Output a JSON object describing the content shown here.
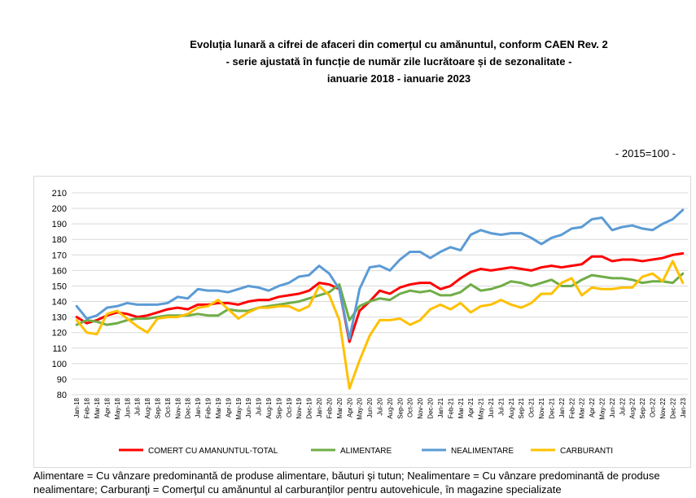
{
  "title": {
    "line1": "Evoluția lunară a cifrei de afaceri din comerțul cu amănuntul, conform CAEN Rev. 2",
    "line2": "- serie ajustată în funcție de număr zile lucrătoare și de sezonalitate -",
    "line3": "ianuarie 2018 - ianuarie 2023"
  },
  "base_note": "- 2015=100 -",
  "footnote": "Alimentare = Cu vânzare predominantă de produse alimentare, băuturi şi tutun; Nealimentare = Cu vânzare predominantă de produse nealimentare; Carburanţi = Comerţul cu amănuntul al carburanţilor pentru autovehicule, în magazine specializate",
  "chart_data": {
    "type": "line",
    "ylim": [
      80,
      210
    ],
    "yticks": [
      80,
      90,
      100,
      110,
      120,
      130,
      140,
      150,
      160,
      170,
      180,
      190,
      200,
      210
    ],
    "grid": "horizontal",
    "legend_position": "bottom",
    "x": [
      "Jan-18",
      "Feb-18",
      "Mar-18",
      "Apr-18",
      "May-18",
      "Jun-18",
      "Jul-18",
      "Aug-18",
      "Sep-18",
      "Oct-18",
      "Nov-18",
      "Dec-18",
      "Jan-19",
      "Feb-19",
      "Mar-19",
      "Apr-19",
      "May-19",
      "Jun-19",
      "Jul-19",
      "Aug-19",
      "Sep-19",
      "Oct-19",
      "Nov-19",
      "Dec-19",
      "Jan-20",
      "Feb-20",
      "Mar-20",
      "Apr-20",
      "May-20",
      "Jun-20",
      "Jul-20",
      "Aug-20",
      "Sep-20",
      "Oct-20",
      "Nov-20",
      "Dec-20",
      "Jan-21",
      "Feb-21",
      "Mar-21",
      "Apr-21",
      "May-21",
      "Jun-21",
      "Jul-21",
      "Aug-21",
      "Sep-21",
      "Oct-21",
      "Nov-21",
      "Dec-21",
      "Jan-22",
      "Feb-22",
      "Mar-22",
      "Apr-22",
      "May-22",
      "Jun-22",
      "Jul-22",
      "Aug-22",
      "Sep-22",
      "Oct-22",
      "Nov-22",
      "Dec-22",
      "Jan-23"
    ],
    "series": [
      {
        "name": "COMERT CU AMANUNTUL-TOTAL",
        "color": "#ff0000",
        "values": [
          130,
          126,
          128,
          131,
          133,
          132,
          130,
          131,
          133,
          135,
          136,
          135,
          138,
          138,
          139,
          139,
          138,
          140,
          141,
          141,
          143,
          144,
          145,
          147,
          152,
          151,
          148,
          114,
          134,
          140,
          147,
          145,
          149,
          151,
          152,
          152,
          148,
          150,
          155,
          159,
          161,
          160,
          161,
          162,
          161,
          160,
          162,
          163,
          162,
          163,
          164,
          169,
          169,
          166,
          167,
          167,
          166,
          167,
          168,
          170,
          171
        ]
      },
      {
        "name": "ALIMENTARE",
        "color": "#70ad47",
        "values": [
          125,
          128,
          127,
          125,
          126,
          128,
          129,
          129,
          130,
          131,
          131,
          131,
          132,
          131,
          131,
          135,
          134,
          134,
          136,
          137,
          138,
          139,
          140,
          142,
          144,
          146,
          151,
          128,
          137,
          140,
          142,
          141,
          145,
          147,
          146,
          147,
          144,
          144,
          146,
          151,
          147,
          148,
          150,
          153,
          152,
          150,
          152,
          154,
          150,
          150,
          154,
          157,
          156,
          155,
          155,
          154,
          152,
          153,
          153,
          152,
          158
        ]
      },
      {
        "name": "NEALIMENTARE",
        "color": "#5b9bd5",
        "values": [
          137,
          129,
          131,
          136,
          137,
          139,
          138,
          138,
          138,
          139,
          143,
          142,
          148,
          147,
          147,
          146,
          148,
          150,
          149,
          147,
          150,
          152,
          156,
          157,
          163,
          158,
          148,
          116,
          148,
          162,
          163,
          160,
          167,
          172,
          172,
          168,
          172,
          175,
          173,
          183,
          186,
          184,
          183,
          184,
          184,
          181,
          177,
          181,
          183,
          187,
          188,
          193,
          194,
          186,
          188,
          189,
          187,
          186,
          190,
          193,
          199
        ]
      },
      {
        "name": "CARBURANTI",
        "color": "#ffc000",
        "values": [
          128,
          120,
          119,
          132,
          134,
          129,
          124,
          120,
          129,
          130,
          130,
          132,
          136,
          137,
          141,
          135,
          129,
          133,
          136,
          136,
          137,
          137,
          134,
          137,
          150,
          144,
          128,
          84,
          102,
          118,
          128,
          128,
          129,
          125,
          128,
          135,
          138,
          135,
          139,
          133,
          137,
          138,
          141,
          138,
          136,
          139,
          145,
          145,
          152,
          155,
          144,
          149,
          148,
          148,
          149,
          149,
          156,
          158,
          153,
          166,
          152
        ]
      }
    ]
  }
}
